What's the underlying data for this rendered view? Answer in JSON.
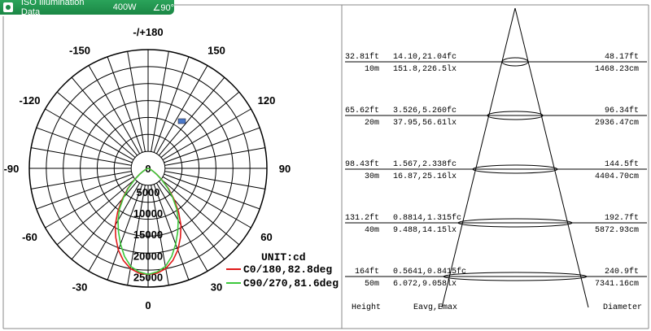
{
  "header": {
    "title": "ISO Illumination Data",
    "wattage": "400W",
    "angle": "∠90°"
  },
  "chart_data": [
    {
      "type": "polar",
      "unit_label": "UNIT:cd",
      "angle_labels": [
        "-/+180",
        "150",
        "120",
        "90",
        "60",
        "30",
        "0",
        "-30",
        "-60",
        "-90",
        "-120",
        "-150"
      ],
      "radial_ticks": [
        0,
        5000,
        10000,
        15000,
        20000,
        25000
      ],
      "rmax": 28000,
      "series": [
        {
          "name": "C0/180,82.8deg",
          "color": "#e01919",
          "points_deg_cd": [
            [
              0,
              25000
            ],
            [
              5,
              24800
            ],
            [
              10,
              24000
            ],
            [
              15,
              22500
            ],
            [
              20,
              20500
            ],
            [
              25,
              18000
            ],
            [
              30,
              15500
            ],
            [
              35,
              12500
            ],
            [
              40,
              9500
            ],
            [
              45,
              6800
            ],
            [
              50,
              4300
            ],
            [
              55,
              2500
            ],
            [
              60,
              1400
            ],
            [
              65,
              700
            ],
            [
              70,
              300
            ],
            [
              75,
              100
            ],
            [
              80,
              20
            ],
            [
              82.8,
              0
            ]
          ]
        },
        {
          "name": "C90/270,81.6deg",
          "color": "#3cc83c",
          "points_deg_cd": [
            [
              0,
              25000
            ],
            [
              5,
              24500
            ],
            [
              10,
              23500
            ],
            [
              15,
              21500
            ],
            [
              20,
              19000
            ],
            [
              25,
              16500
            ],
            [
              30,
              14200
            ],
            [
              35,
              11800
            ],
            [
              40,
              9000
            ],
            [
              45,
              6500
            ],
            [
              50,
              4200
            ],
            [
              55,
              2400
            ],
            [
              60,
              1300
            ],
            [
              65,
              600
            ],
            [
              70,
              250
            ],
            [
              75,
              80
            ],
            [
              80,
              15
            ],
            [
              81.6,
              0
            ]
          ]
        }
      ]
    },
    {
      "type": "table",
      "columns": [
        "Height",
        "Eavg,Emax",
        "Diameter"
      ],
      "rows": [
        {
          "height_ft": "32.81ft",
          "height_m": "10m",
          "fc": "14.10,21.04fc",
          "lx": "151.8,226.5lx",
          "diam_ft": "48.17ft",
          "diam_cm": "1468.23cm"
        },
        {
          "height_ft": "65.62ft",
          "height_m": "20m",
          "fc": "3.526,5.260fc",
          "lx": "37.95,56.61lx",
          "diam_ft": "96.34ft",
          "diam_cm": "2936.47cm"
        },
        {
          "height_ft": "98.43ft",
          "height_m": "30m",
          "fc": "1.567,2.338fc",
          "lx": "16.87,25.16lx",
          "diam_ft": "144.5ft",
          "diam_cm": "4404.70cm"
        },
        {
          "height_ft": "131.2ft",
          "height_m": "40m",
          "fc": "0.8814,1.315fc",
          "lx": "9.488,14.15lx",
          "diam_ft": "192.7ft",
          "diam_cm": "5872.93cm"
        },
        {
          "height_ft": "164ft",
          "height_m": "50m",
          "fc": "0.5641,0.8415fc",
          "lx": "6.072,9.058lx",
          "diam_ft": "240.9ft",
          "diam_cm": "7341.16cm"
        }
      ]
    }
  ]
}
